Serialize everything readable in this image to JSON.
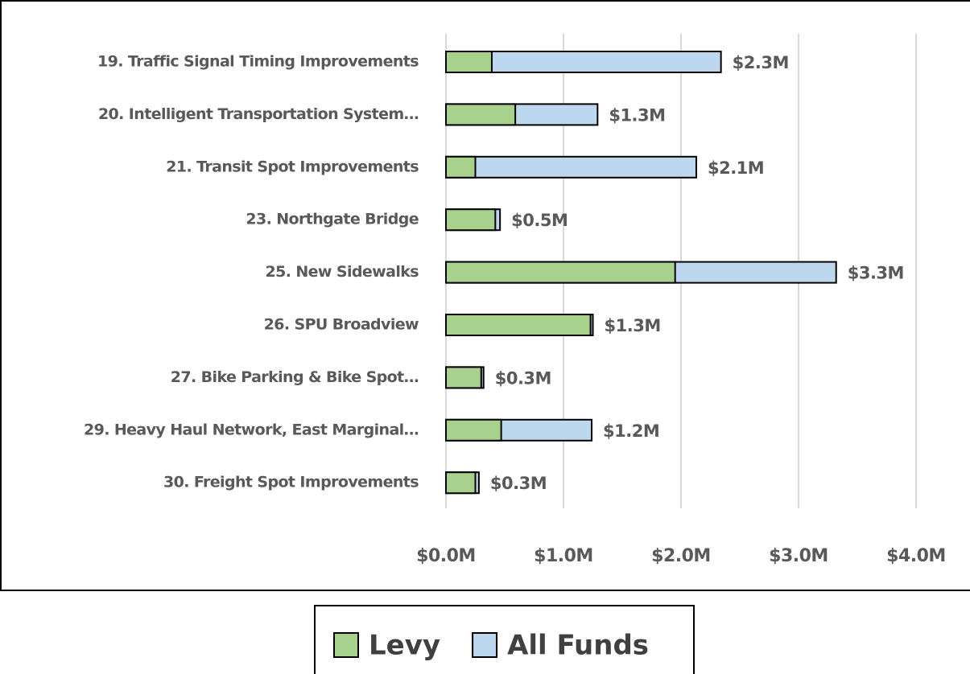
{
  "chart_data": {
    "type": "bar",
    "orientation": "horizontal",
    "overlap": true,
    "categories": [
      "19. Traffic Signal Timing Improvements",
      "20. Intelligent Transportation System…",
      "21. Transit Spot Improvements",
      "23. Northgate Bridge",
      "25. New Sidewalks",
      "26. SPU Broadview",
      "27. Bike Parking & Bike Spot…",
      "29. Heavy Haul Network, East Marginal…",
      "30. Freight Spot Improvements"
    ],
    "series": [
      {
        "name": "All Funds",
        "color": "#bdd7ee",
        "values": [
          2.34,
          1.29,
          2.13,
          0.46,
          3.32,
          1.25,
          0.32,
          1.24,
          0.28
        ],
        "value_labels": [
          "$2.3M",
          "$1.3M",
          "$2.1M",
          "$0.5M",
          "$3.3M",
          "$1.3M",
          "$0.3M",
          "$1.2M",
          "$0.3M"
        ]
      },
      {
        "name": "Levy",
        "color": "#a9d18e",
        "values": [
          0.39,
          0.59,
          0.25,
          0.42,
          1.95,
          1.23,
          0.3,
          0.47,
          0.25
        ]
      }
    ],
    "legend_order": [
      1,
      0
    ],
    "xlim": [
      0,
      4
    ],
    "xticks": [
      {
        "value": 0,
        "label": "$0.0M"
      },
      {
        "value": 1,
        "label": "$1.0M"
      },
      {
        "value": 2,
        "label": "$2.0M"
      },
      {
        "value": 3,
        "label": "$3.0M"
      },
      {
        "value": 4,
        "label": "$4.0M"
      }
    ],
    "grid": true
  }
}
